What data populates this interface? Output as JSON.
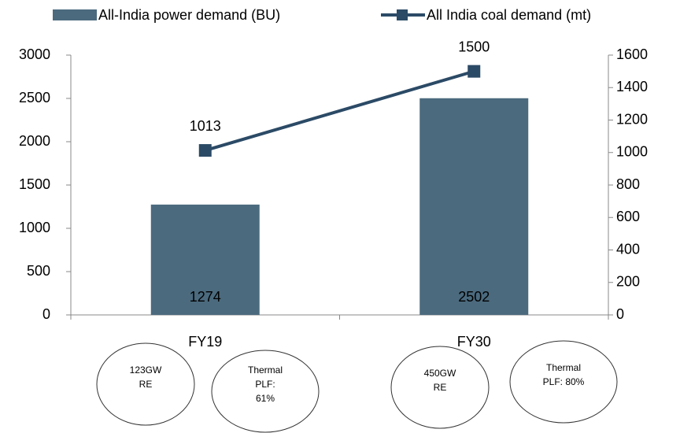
{
  "chart_data": {
    "type": "bar",
    "categories": [
      "FY19",
      "FY30"
    ],
    "series": [
      {
        "name": "All-India power demand (BU)",
        "type": "bar",
        "color": "#4b6a7e",
        "values": [
          1274,
          2502
        ]
      },
      {
        "name": "All India coal demand (mt)",
        "type": "line",
        "axis": "y2",
        "color": "#2b4a66",
        "values": [
          1013,
          1500
        ]
      }
    ],
    "ylim": [
      0,
      3000
    ],
    "yticks": [
      0,
      500,
      1000,
      1500,
      2000,
      2500,
      3000
    ],
    "y2lim": [
      0,
      1600
    ],
    "y2ticks": [
      0,
      200,
      400,
      600,
      800,
      1000,
      1200,
      1400,
      1600
    ],
    "legend": "top",
    "annotations": [
      [
        "123GW",
        "RE"
      ],
      [
        "Thermal",
        "PLF:",
        "61%"
      ],
      [
        "450GW",
        "RE"
      ],
      [
        "Thermal",
        "PLF: 80%"
      ]
    ]
  }
}
